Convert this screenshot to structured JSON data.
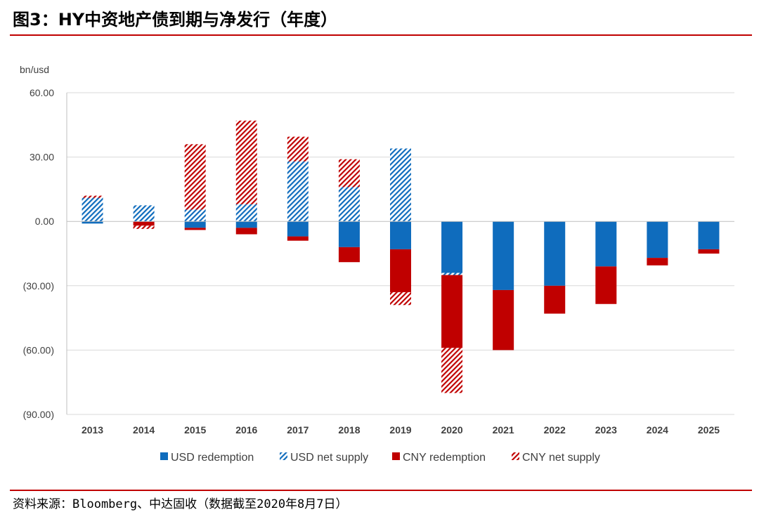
{
  "figure": {
    "title": "图3：HY中资地产债到期与净发行（年度）",
    "source": "资料来源：Bloomberg、中达固收（数据截至2020年8月7日）"
  },
  "colors": {
    "usd": "#0f6cbd",
    "cny": "#c00000",
    "grid": "#d9d9d9",
    "axis": "#bfbfbf",
    "rule": "#c00000"
  },
  "chart_data": {
    "type": "bar",
    "stacked": true,
    "unit_label": "bn/usd",
    "categories": [
      "2013",
      "2014",
      "2015",
      "2016",
      "2017",
      "2018",
      "2019",
      "2020",
      "2021",
      "2022",
      "2023",
      "2024",
      "2025"
    ],
    "ylim": [
      -90,
      60
    ],
    "yticks": [
      60,
      30,
      0,
      -30,
      -60,
      -90
    ],
    "ytick_labels": [
      "60.00",
      "30.00",
      "0.00",
      "(30.00)",
      "(60.00)",
      "(90.00)"
    ],
    "grid": true,
    "legend_position": "bottom",
    "series": [
      {
        "name": "USD redemption",
        "pattern": "solid",
        "color": "#0f6cbd",
        "values": [
          -1,
          0,
          -3,
          -3,
          -7,
          -12,
          -13,
          -24,
          -32,
          -30,
          -21,
          -17,
          -13
        ]
      },
      {
        "name": "USD net supply",
        "pattern": "hatch",
        "color": "#0f6cbd",
        "values": [
          11,
          7.5,
          5.5,
          8,
          28,
          16,
          34,
          -1,
          0,
          0,
          0,
          0,
          0
        ]
      },
      {
        "name": "CNY redemption",
        "pattern": "solid",
        "color": "#c00000",
        "values": [
          0,
          -2,
          -1,
          -3,
          -2,
          -7,
          -20,
          -34,
          -28,
          -13,
          -17.5,
          -3.5,
          -2
        ]
      },
      {
        "name": "CNY net supply",
        "pattern": "hatch",
        "color": "#c00000",
        "values": [
          1,
          -1.5,
          30.5,
          39,
          11.5,
          13,
          -6,
          -21,
          0,
          0,
          0,
          0,
          0
        ]
      }
    ]
  }
}
